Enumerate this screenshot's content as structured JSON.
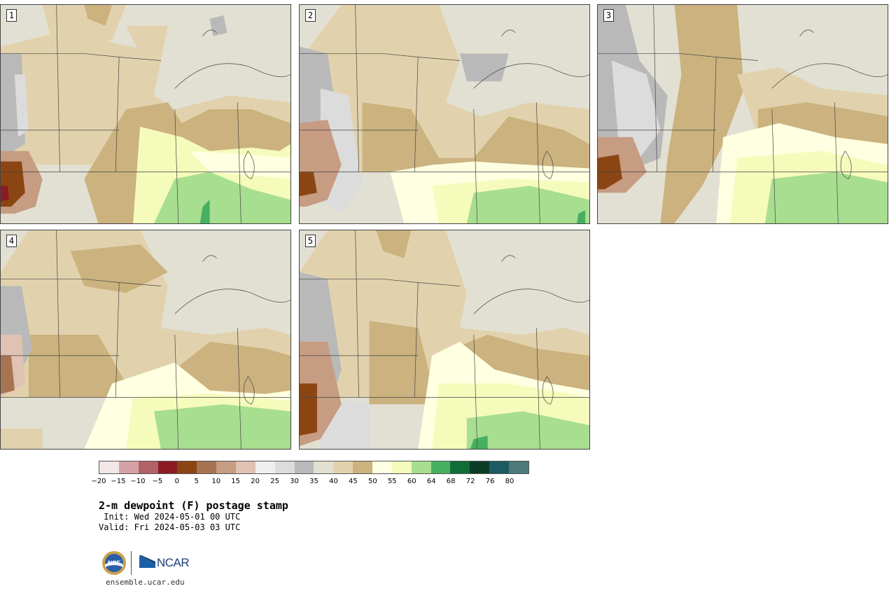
{
  "panels": [
    {
      "label": "1"
    },
    {
      "label": "2"
    },
    {
      "label": "3"
    },
    {
      "label": "4"
    },
    {
      "label": "5"
    }
  ],
  "colorbar": {
    "colors": [
      "#f3e6e6",
      "#d4a2a4",
      "#b06266",
      "#8c1b24",
      "#8b4513",
      "#a87350",
      "#c69c82",
      "#dfc2b2",
      "#efefef",
      "#dcdcdc",
      "#b9b9b9",
      "#e2e0d2",
      "#e1d2ad",
      "#cbb27e",
      "#ffffe1",
      "#f5fbbb",
      "#a8de8f",
      "#46b060",
      "#0f6d36",
      "#0c3b25",
      "#1c5b62",
      "#4c7a7a"
    ],
    "tick_labels": [
      "−20",
      "−15",
      "−10",
      "−5",
      "0",
      "5",
      "10",
      "15",
      "20",
      "25",
      "30",
      "35",
      "40",
      "45",
      "50",
      "55",
      "60",
      "64",
      "68",
      "72",
      "76",
      "80"
    ]
  },
  "title": "2-m dewpoint (F) postage stamp",
  "init_text": " Init: Wed 2024-05-01 00 UTC",
  "valid_text": "Valid: Fri 2024-05-03 03 UTC",
  "logos": {
    "nsf": "NSF",
    "ncar": "NCAR"
  },
  "site": "ensemble.ucar.edu"
}
